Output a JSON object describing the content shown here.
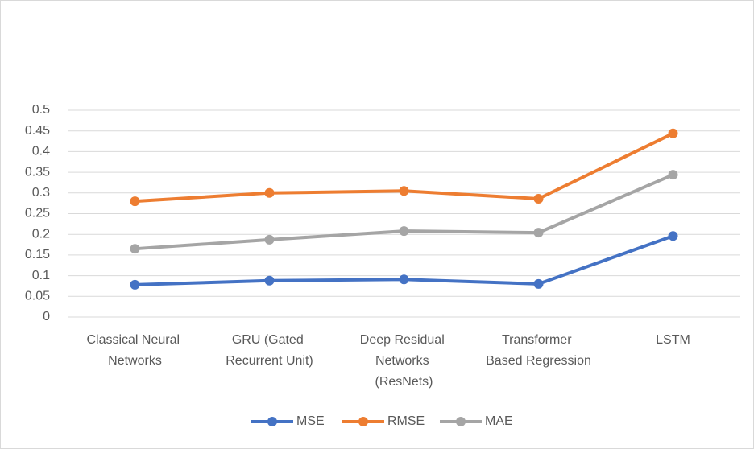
{
  "chart_data": {
    "type": "line",
    "categories": [
      "Classical Neural Networks",
      "GRU (Gated Recurrent Unit)",
      "Deep Residual Networks (ResNets)",
      "Transformer Based Regression",
      "LSTM"
    ],
    "series": [
      {
        "name": "MSE",
        "color": "#4472c4",
        "values": [
          0.078,
          0.088,
          0.091,
          0.08,
          0.196
        ]
      },
      {
        "name": "RMSE",
        "color": "#ed7d31",
        "values": [
          0.28,
          0.3,
          0.305,
          0.286,
          0.444
        ]
      },
      {
        "name": "MAE",
        "color": "#a5a5a5",
        "values": [
          0.165,
          0.187,
          0.208,
          0.204,
          0.344
        ]
      }
    ],
    "ylim": [
      0,
      0.5
    ],
    "yticks": [
      0,
      0.05,
      0.1,
      0.15,
      0.2,
      0.25,
      0.3,
      0.35,
      0.4,
      0.45,
      0.5
    ],
    "grid": true,
    "legend": "bottom"
  }
}
